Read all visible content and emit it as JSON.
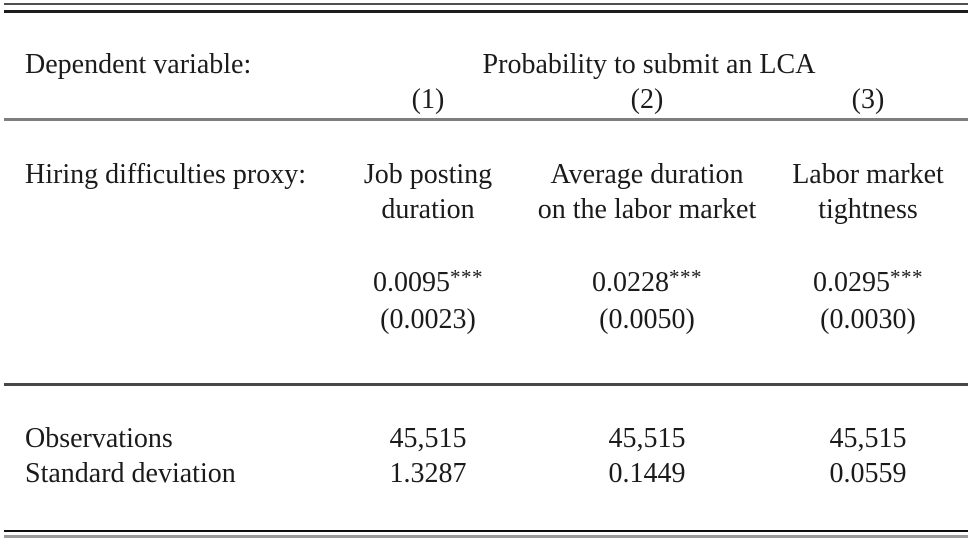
{
  "table": {
    "header": {
      "dependent_variable_label": "Dependent variable:",
      "dependent_variable_value": "Probability to submit an LCA",
      "column_numbers": [
        "(1)",
        "(2)",
        "(3)"
      ]
    },
    "proxy": {
      "label": "Hiring difficulties proxy:",
      "columns": [
        {
          "line1": "Job posting",
          "line2": "duration"
        },
        {
          "line1": "Average duration",
          "line2": "on the labor market"
        },
        {
          "line1": "Labor market",
          "line2": "tightness"
        }
      ]
    },
    "coefficients": [
      {
        "value": "0.0095",
        "stars": "***",
        "se": "(0.0023)"
      },
      {
        "value": "0.0228",
        "stars": "***",
        "se": "(0.0050)"
      },
      {
        "value": "0.0295",
        "stars": "***",
        "se": "(0.0030)"
      }
    ],
    "stats": [
      {
        "label": "Observations",
        "values": [
          "45,515",
          "45,515",
          "45,515"
        ]
      },
      {
        "label": "Standard deviation",
        "values": [
          "1.3287",
          "0.1449",
          "0.0559"
        ]
      }
    ]
  },
  "colors": {
    "background": "#ffffff",
    "text": "#1b1b1b"
  }
}
